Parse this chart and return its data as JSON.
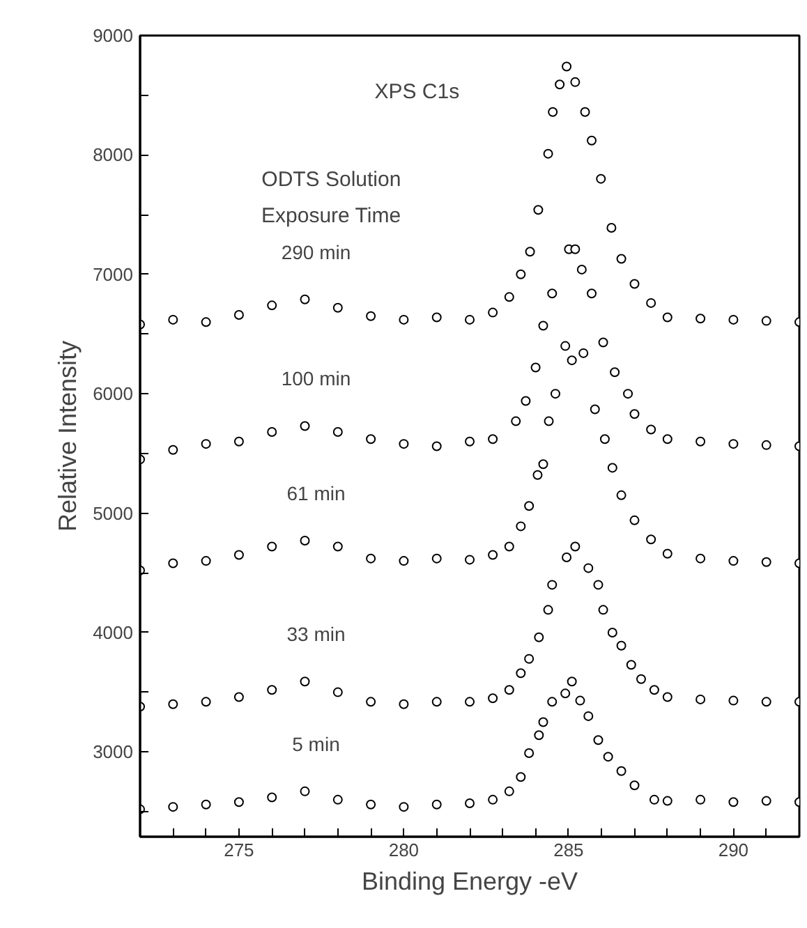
{
  "chart_data": {
    "type": "scatter",
    "xlabel": "Binding Energy -eV",
    "ylabel": "Relative Intensity",
    "annotations": [
      "XPS C1s",
      "ODTS Solution",
      "Exposure Time"
    ],
    "marker": "circle",
    "xlim": [
      272,
      292
    ],
    "ylim": [
      2290,
      9000
    ],
    "xticks": [
      {
        "value": 273,
        "label": null
      },
      {
        "value": 274,
        "label": null
      },
      275,
      {
        "value": 276,
        "label": null
      },
      {
        "value": 277,
        "label": null
      },
      {
        "value": 278,
        "label": null
      },
      {
        "value": 279,
        "label": null
      },
      280,
      {
        "value": 281,
        "label": null
      },
      {
        "value": 282,
        "label": null
      },
      {
        "value": 283,
        "label": null
      },
      {
        "value": 284,
        "label": null
      },
      285,
      {
        "value": 286,
        "label": null
      },
      {
        "value": 287,
        "label": null
      },
      {
        "value": 288,
        "label": null
      },
      {
        "value": 289,
        "label": null
      },
      290,
      {
        "value": 291,
        "label": null
      }
    ],
    "yticks": [
      {
        "value": 2500,
        "label": null
      },
      3000,
      {
        "value": 3500,
        "label": null
      },
      4000,
      {
        "value": 4500,
        "label": null
      },
      5000,
      {
        "value": 5500,
        "label": null
      },
      6000,
      {
        "value": 6500,
        "label": null
      },
      7000,
      {
        "value": 7500,
        "label": null
      },
      8000,
      {
        "value": 8500,
        "label": null
      },
      9000
    ],
    "series": [
      {
        "name": "290 min",
        "color": "#000000",
        "x": [
          272,
          273,
          274,
          275,
          276,
          277,
          278,
          279,
          280,
          281,
          282,
          282.7,
          283.2,
          283.55,
          283.83,
          284.08,
          284.38,
          284.52,
          284.73,
          284.94,
          285.2,
          285.5,
          285.7,
          285.98,
          286.3,
          286.6,
          287.0,
          287.5,
          288,
          289,
          290,
          291,
          292
        ],
        "values": [
          6580,
          6620,
          6600,
          6660,
          6740,
          6790,
          6720,
          6650,
          6620,
          6640,
          6620,
          6680,
          6810,
          7000,
          7190,
          7540,
          8010,
          8360,
          8590,
          8740,
          8610,
          8360,
          8120,
          7800,
          7390,
          7130,
          6920,
          6760,
          6640,
          6630,
          6620,
          6610,
          6600
        ]
      },
      {
        "name": "100 min",
        "color": "#000000",
        "x": [
          272,
          273,
          274,
          275,
          276,
          277,
          278,
          279,
          280,
          281,
          282,
          282.7,
          283.4,
          283.7,
          284.0,
          284.23,
          284.5,
          285.01,
          285.2,
          285.4,
          285.7,
          286.05,
          286.4,
          286.8,
          287.0,
          287.5,
          288,
          289,
          290,
          291,
          292
        ],
        "values": [
          5450,
          5530,
          5580,
          5600,
          5680,
          5730,
          5680,
          5620,
          5580,
          5560,
          5600,
          5620,
          5770,
          5940,
          6220,
          6570,
          6840,
          7210,
          7210,
          7040,
          6840,
          6430,
          6180,
          6000,
          5830,
          5700,
          5620,
          5600,
          5580,
          5570,
          5560
        ]
      },
      {
        "name": "61 min",
        "color": "#000000",
        "x": [
          272,
          273,
          274,
          275,
          276,
          277,
          278,
          279,
          280,
          281,
          282,
          282.7,
          283.2,
          283.55,
          283.8,
          284.06,
          284.23,
          284.4,
          284.6,
          284.9,
          285.1,
          285.45,
          285.8,
          286.1,
          286.33,
          286.6,
          287.0,
          287.5,
          288.0,
          289,
          290,
          291,
          292
        ],
        "values": [
          4520,
          4580,
          4600,
          4650,
          4720,
          4770,
          4720,
          4620,
          4600,
          4620,
          4610,
          4650,
          4720,
          4890,
          5060,
          5320,
          5410,
          5770,
          6000,
          6400,
          6280,
          6340,
          5870,
          5620,
          5380,
          5150,
          4940,
          4780,
          4660,
          4620,
          4600,
          4590,
          4580
        ]
      },
      {
        "name": "33 min",
        "color": "#000000",
        "x": [
          272,
          273,
          274,
          275,
          276,
          277,
          278,
          279,
          280,
          281,
          282,
          282.7,
          283.2,
          283.55,
          283.8,
          284.1,
          284.38,
          284.5,
          284.94,
          285.2,
          285.6,
          285.9,
          286.05,
          286.33,
          286.6,
          286.9,
          287.2,
          287.6,
          288,
          289,
          290,
          291,
          292
        ],
        "values": [
          3380,
          3400,
          3420,
          3460,
          3520,
          3590,
          3500,
          3420,
          3400,
          3420,
          3420,
          3450,
          3520,
          3660,
          3780,
          3960,
          4190,
          4400,
          4630,
          4720,
          4540,
          4400,
          4190,
          4000,
          3890,
          3730,
          3610,
          3520,
          3460,
          3440,
          3430,
          3420,
          3420
        ]
      },
      {
        "name": "5 min",
        "color": "#000000",
        "x": [
          272,
          273,
          274,
          275,
          276,
          277,
          278,
          279,
          280,
          281,
          282,
          282.7,
          283.2,
          283.55,
          283.8,
          284.1,
          284.23,
          284.5,
          284.9,
          285.1,
          285.35,
          285.6,
          285.9,
          286.2,
          286.6,
          287.0,
          287.6,
          288,
          289,
          290,
          291,
          292
        ],
        "values": [
          2520,
          2540,
          2560,
          2580,
          2620,
          2670,
          2600,
          2560,
          2540,
          2560,
          2570,
          2600,
          2670,
          2790,
          2990,
          3140,
          3250,
          3420,
          3490,
          3590,
          3430,
          3300,
          3100,
          2960,
          2840,
          2720,
          2600,
          2590,
          2600,
          2580,
          2590,
          2580
        ]
      }
    ]
  }
}
